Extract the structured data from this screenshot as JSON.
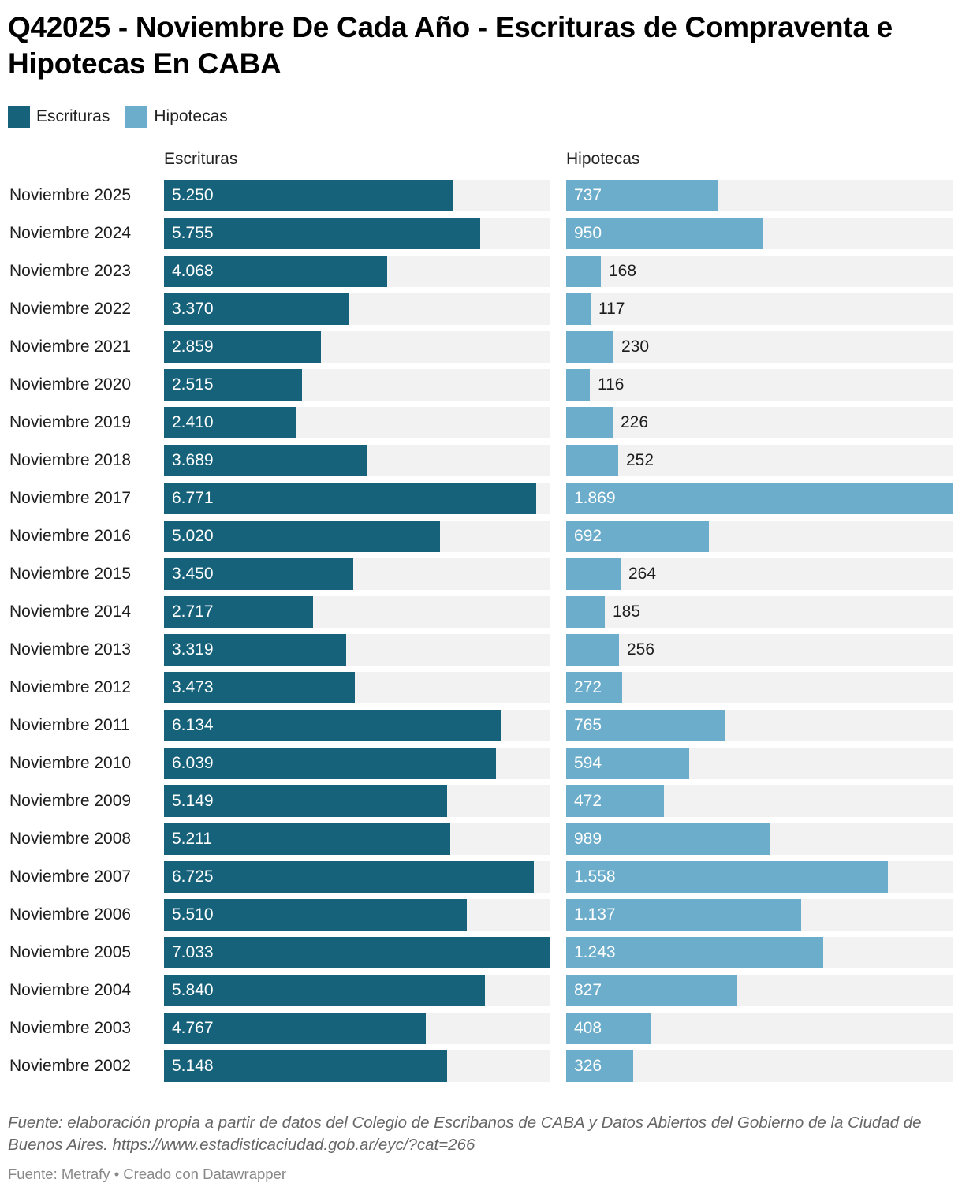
{
  "chart_data": {
    "type": "bar",
    "orientation": "horizontal",
    "title": "Q42025 - Noviembre De Cada Año - Escrituras de Compraventa e Hipotecas En CABA",
    "legend": [
      "Escrituras",
      "Hipotecas"
    ],
    "legend_position": "top-left",
    "grid": false,
    "categories": [
      "Noviembre 2025",
      "Noviembre 2024",
      "Noviembre 2023",
      "Noviembre 2022",
      "Noviembre 2021",
      "Noviembre 2020",
      "Noviembre 2019",
      "Noviembre 2018",
      "Noviembre 2017",
      "Noviembre 2016",
      "Noviembre 2015",
      "Noviembre 2014",
      "Noviembre 2013",
      "Noviembre 2012",
      "Noviembre 2011",
      "Noviembre 2010",
      "Noviembre 2009",
      "Noviembre 2008",
      "Noviembre 2007",
      "Noviembre 2006",
      "Noviembre 2005",
      "Noviembre 2004",
      "Noviembre 2003",
      "Noviembre 2002"
    ],
    "series": [
      {
        "name": "Escrituras",
        "color": "#17627b",
        "xlim": [
          0,
          7033
        ],
        "values": [
          5250,
          5755,
          4068,
          3370,
          2859,
          2515,
          2410,
          3689,
          6771,
          5020,
          3450,
          2717,
          3319,
          3473,
          6134,
          6039,
          5149,
          5211,
          6725,
          5510,
          7033,
          5840,
          4767,
          5148
        ],
        "labels": [
          "5.250",
          "5.755",
          "4.068",
          "3.370",
          "2.859",
          "2.515",
          "2.410",
          "3.689",
          "6.771",
          "5.020",
          "3.450",
          "2.717",
          "3.319",
          "3.473",
          "6.134",
          "6.039",
          "5.149",
          "5.211",
          "6.725",
          "5.510",
          "7.033",
          "5.840",
          "4.767",
          "5.148"
        ]
      },
      {
        "name": "Hipotecas",
        "color": "#6badca",
        "xlim": [
          0,
          1869
        ],
        "values": [
          737,
          950,
          168,
          117,
          230,
          116,
          226,
          252,
          1869,
          692,
          264,
          185,
          256,
          272,
          765,
          594,
          472,
          989,
          1558,
          1137,
          1243,
          827,
          408,
          326
        ],
        "labels": [
          "737",
          "950",
          "168",
          "117",
          "230",
          "116",
          "226",
          "252",
          "1.869",
          "692",
          "264",
          "185",
          "256",
          "272",
          "765",
          "594",
          "472",
          "989",
          "1.558",
          "1.137",
          "1.243",
          "827",
          "408",
          "326"
        ]
      }
    ],
    "track_color": "#f2f2f2",
    "notes": "Fuente: elaboración propia a partir de datos del Colegio de Escribanos de CABA y Datos Abiertos del Gobierno de la Ciudad de Buenos Aires. https://www.estadisticaciudad.gob.ar/eyc/?cat=266",
    "byline": "Fuente: Metrafy • Creado con Datawrapper"
  }
}
